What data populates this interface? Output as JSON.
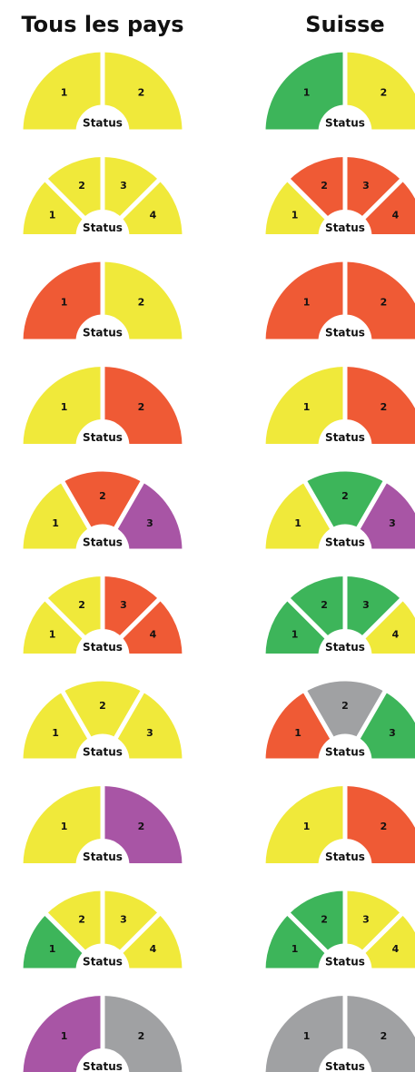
{
  "headers": [
    "Tous les pays",
    "Suisse"
  ],
  "rows": [
    {
      "left": {
        "segments": [
          {
            "label": "1",
            "color": "#f0e93a"
          },
          {
            "label": "2",
            "color": "#f0e93a"
          }
        ],
        "center": "Status"
      },
      "right": {
        "segments": [
          {
            "label": "1",
            "color": "#3db55a"
          },
          {
            "label": "2",
            "color": "#f0e93a"
          }
        ],
        "center": "Status"
      }
    },
    {
      "left": {
        "segments": [
          {
            "label": "1",
            "color": "#f0e93a"
          },
          {
            "label": "2",
            "color": "#f0e93a"
          },
          {
            "label": "3",
            "color": "#f0e93a"
          },
          {
            "label": "4",
            "color": "#f0e93a"
          }
        ],
        "center": "Status"
      },
      "right": {
        "segments": [
          {
            "label": "1",
            "color": "#f0e93a"
          },
          {
            "label": "2",
            "color": "#ef5a35"
          },
          {
            "label": "3",
            "color": "#ef5a35"
          },
          {
            "label": "4",
            "color": "#ef5a35"
          }
        ],
        "center": "Status"
      }
    },
    {
      "left": {
        "segments": [
          {
            "label": "1",
            "color": "#ef5a35"
          },
          {
            "label": "2",
            "color": "#f0e93a"
          }
        ],
        "center": "Status"
      },
      "right": {
        "segments": [
          {
            "label": "1",
            "color": "#ef5a35"
          },
          {
            "label": "2",
            "color": "#ef5a35"
          }
        ],
        "center": "Status"
      }
    },
    {
      "left": {
        "segments": [
          {
            "label": "1",
            "color": "#f0e93a"
          },
          {
            "label": "2",
            "color": "#ef5a35"
          }
        ],
        "center": "Status"
      },
      "right": {
        "segments": [
          {
            "label": "1",
            "color": "#f0e93a"
          },
          {
            "label": "2",
            "color": "#ef5a35"
          }
        ],
        "center": "Status"
      }
    },
    {
      "left": {
        "segments": [
          {
            "label": "1",
            "color": "#f0e93a"
          },
          {
            "label": "2",
            "color": "#ef5a35"
          },
          {
            "label": "3",
            "color": "#a855a5"
          }
        ],
        "center": "Status"
      },
      "right": {
        "segments": [
          {
            "label": "1",
            "color": "#f0e93a"
          },
          {
            "label": "2",
            "color": "#3db55a"
          },
          {
            "label": "3",
            "color": "#a855a5"
          }
        ],
        "center": "Status"
      }
    },
    {
      "left": {
        "segments": [
          {
            "label": "1",
            "color": "#f0e93a"
          },
          {
            "label": "2",
            "color": "#f0e93a"
          },
          {
            "label": "3",
            "color": "#ef5a35"
          },
          {
            "label": "4",
            "color": "#ef5a35"
          }
        ],
        "center": "Status"
      },
      "right": {
        "segments": [
          {
            "label": "1",
            "color": "#3db55a"
          },
          {
            "label": "2",
            "color": "#3db55a"
          },
          {
            "label": "3",
            "color": "#3db55a"
          },
          {
            "label": "4",
            "color": "#f0e93a"
          }
        ],
        "center": "Status"
      }
    },
    {
      "left": {
        "segments": [
          {
            "label": "1",
            "color": "#f0e93a"
          },
          {
            "label": "2",
            "color": "#f0e93a"
          },
          {
            "label": "3",
            "color": "#f0e93a"
          }
        ],
        "center": "Status"
      },
      "right": {
        "segments": [
          {
            "label": "1",
            "color": "#ef5a35"
          },
          {
            "label": "2",
            "color": "#a0a1a3"
          },
          {
            "label": "3",
            "color": "#3db55a"
          }
        ],
        "center": "Status"
      }
    },
    {
      "left": {
        "segments": [
          {
            "label": "1",
            "color": "#f0e93a"
          },
          {
            "label": "2",
            "color": "#a855a5"
          }
        ],
        "center": "Status"
      },
      "right": {
        "segments": [
          {
            "label": "1",
            "color": "#f0e93a"
          },
          {
            "label": "2",
            "color": "#ef5a35"
          }
        ],
        "center": "Status"
      }
    },
    {
      "left": {
        "segments": [
          {
            "label": "1",
            "color": "#3db55a"
          },
          {
            "label": "2",
            "color": "#f0e93a"
          },
          {
            "label": "3",
            "color": "#f0e93a"
          },
          {
            "label": "4",
            "color": "#f0e93a"
          }
        ],
        "center": "Status"
      },
      "right": {
        "segments": [
          {
            "label": "1",
            "color": "#3db55a"
          },
          {
            "label": "2",
            "color": "#3db55a"
          },
          {
            "label": "3",
            "color": "#f0e93a"
          },
          {
            "label": "4",
            "color": "#f0e93a"
          }
        ],
        "center": "Status"
      }
    },
    {
      "left": {
        "segments": [
          {
            "label": "1",
            "color": "#a855a5"
          },
          {
            "label": "2",
            "color": "#a0a1a3"
          }
        ],
        "center": "Status"
      },
      "right": {
        "segments": [
          {
            "label": "1",
            "color": "#a0a1a3"
          },
          {
            "label": "2",
            "color": "#a0a1a3"
          }
        ],
        "center": "Status"
      }
    }
  ]
}
